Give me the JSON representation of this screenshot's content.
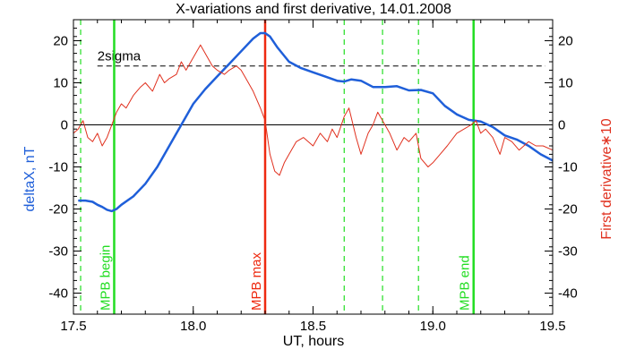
{
  "chart_data": {
    "type": "line",
    "title": "X-variations and first derivative, 14.01.2008",
    "xlabel": "UT, hours",
    "ylabel_left": "deltaX, nT",
    "ylabel_right": "First derivative∗10",
    "xlim": [
      17.5,
      19.5
    ],
    "ylim": [
      -45,
      25
    ],
    "x_ticks": [
      17.5,
      18.0,
      18.5,
      19.0,
      19.5
    ],
    "y_ticks": [
      -40,
      -30,
      -20,
      -10,
      0,
      10,
      20
    ],
    "grid": false,
    "colors": {
      "deltaX": "#1f5fd9",
      "derivative": "#e0301e",
      "marker_green": "#22dd22",
      "marker_red": "#ee2a10"
    },
    "series": [
      {
        "name": "deltaX, nT",
        "axis": "left",
        "color": "#1f5fd9",
        "x": [
          17.52,
          17.55,
          17.58,
          17.6,
          17.62,
          17.64,
          17.66,
          17.68,
          17.7,
          17.75,
          17.8,
          17.85,
          17.9,
          17.95,
          18.0,
          18.05,
          18.1,
          18.15,
          18.2,
          18.25,
          18.28,
          18.3,
          18.32,
          18.35,
          18.4,
          18.45,
          18.5,
          18.55,
          18.6,
          18.63,
          18.66,
          18.7,
          18.75,
          18.8,
          18.85,
          18.9,
          18.95,
          19.0,
          19.05,
          19.1,
          19.15,
          19.2,
          19.25,
          19.3,
          19.35,
          19.4,
          19.45,
          19.5
        ],
        "values": [
          -18,
          -18,
          -18.3,
          -19,
          -19.5,
          -20.2,
          -20.5,
          -20,
          -19,
          -17,
          -14,
          -10,
          -5,
          0,
          5,
          8.5,
          11.5,
          14.5,
          17.5,
          20.5,
          21.8,
          21.8,
          21,
          18.5,
          15,
          13.5,
          12.5,
          11.5,
          10.5,
          10.3,
          10.8,
          10.5,
          9,
          9,
          9.2,
          8.2,
          8.3,
          7.5,
          4.5,
          2.5,
          1.2,
          0.8,
          -0.5,
          -2.5,
          -3.5,
          -5,
          -7,
          -8.5
        ]
      },
      {
        "name": "First derivative∗10",
        "axis": "right",
        "color": "#e0301e",
        "x": [
          17.5,
          17.52,
          17.54,
          17.56,
          17.58,
          17.6,
          17.62,
          17.64,
          17.66,
          17.68,
          17.7,
          17.72,
          17.75,
          17.78,
          17.8,
          17.83,
          17.86,
          17.88,
          17.9,
          17.93,
          17.95,
          17.97,
          18.0,
          18.03,
          18.05,
          18.08,
          18.1,
          18.13,
          18.15,
          18.18,
          18.2,
          18.22,
          18.25,
          18.28,
          18.3,
          18.32,
          18.34,
          18.36,
          18.38,
          18.4,
          18.43,
          18.46,
          18.5,
          18.53,
          18.56,
          18.58,
          18.6,
          18.63,
          18.65,
          18.68,
          18.7,
          18.73,
          18.75,
          18.77,
          18.79,
          18.82,
          18.85,
          18.88,
          18.9,
          18.93,
          18.95,
          18.98,
          19.0,
          19.03,
          19.06,
          19.1,
          19.13,
          19.16,
          19.18,
          19.2,
          19.22,
          19.25,
          19.28,
          19.3,
          19.33,
          19.36,
          19.4,
          19.43,
          19.46,
          19.5
        ],
        "values": [
          -2,
          -1,
          1,
          -3,
          -4,
          -2,
          -5,
          -3,
          0,
          3,
          5,
          4,
          7,
          9,
          10,
          8,
          12,
          10,
          11,
          12,
          15,
          13,
          16,
          19,
          17,
          14,
          13,
          12,
          13,
          14,
          13,
          11,
          8,
          4,
          1,
          -7,
          -11,
          -12,
          -9,
          -7,
          -4,
          -3,
          -5,
          -2,
          -4,
          -1,
          -3,
          2,
          4,
          -3,
          -7,
          -2,
          0,
          3,
          1,
          -2,
          -6,
          -3,
          -4,
          -2,
          -8,
          -10,
          -9,
          -7,
          -5,
          -2,
          -1,
          0,
          1,
          -2,
          -1,
          -3,
          -7,
          -3,
          -4,
          -6,
          -4,
          -5,
          -5,
          -6
        ]
      }
    ],
    "threshold": {
      "value": 14,
      "label": "2sigma"
    },
    "markers": [
      {
        "x": 17.53,
        "style": "dashed",
        "color": "#22dd22",
        "label": ""
      },
      {
        "x": 17.67,
        "style": "solid",
        "color": "#22dd22",
        "label": "MPB begin"
      },
      {
        "x": 18.3,
        "style": "solid",
        "color": "#ee2a10",
        "label": "MPB max"
      },
      {
        "x": 18.63,
        "style": "dashed",
        "color": "#22dd22",
        "label": ""
      },
      {
        "x": 18.79,
        "style": "dashed",
        "color": "#22dd22",
        "label": ""
      },
      {
        "x": 18.94,
        "style": "dashed",
        "color": "#22dd22",
        "label": ""
      },
      {
        "x": 19.17,
        "style": "solid",
        "color": "#22dd22",
        "label": "MPB end"
      }
    ]
  }
}
